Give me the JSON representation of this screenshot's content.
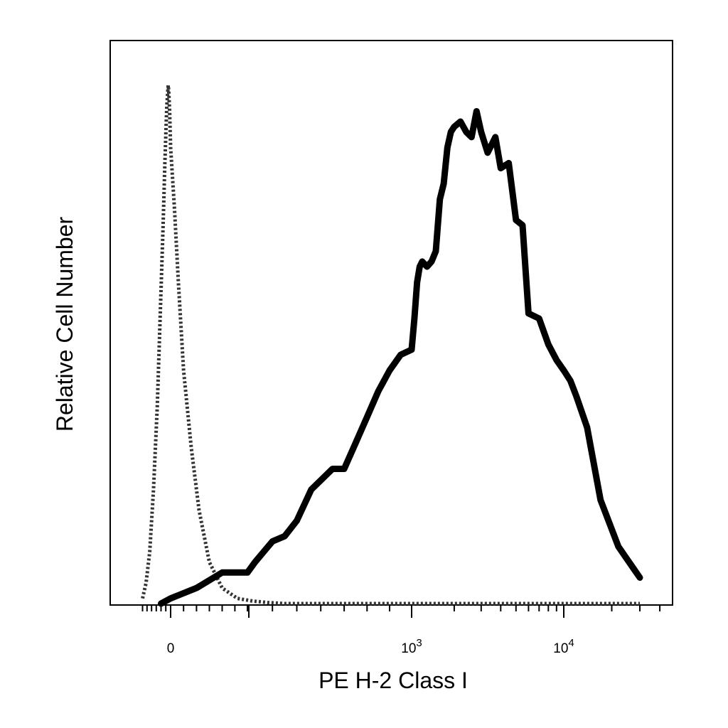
{
  "chart_data": {
    "type": "line",
    "title": "",
    "xlabel": "PE  H-2 Class I",
    "ylabel": "Relative Cell Number",
    "x_scale": "biexponential (linear near 0, log above)",
    "x_ticks": [
      {
        "label": "0",
        "value": 0
      },
      {
        "label": "10",
        "sup": "3",
        "value": 1000
      },
      {
        "label": "10",
        "sup": "4",
        "value": 10000
      }
    ],
    "grid": false,
    "legend": "none",
    "y_range": [
      0,
      100
    ],
    "series": [
      {
        "style": "dotted",
        "color": "#333333",
        "x": [
          -300,
          -260,
          -220,
          -180,
          -140,
          -110,
          -80,
          -60,
          -40,
          -25,
          -20,
          -10,
          0,
          15,
          30,
          50,
          80,
          110,
          150,
          200,
          260,
          320,
          380,
          450,
          550,
          700,
          1000,
          2000,
          5000,
          10000,
          30000
        ],
        "y": [
          1,
          4,
          10,
          22,
          38,
          55,
          72,
          85,
          96,
          100,
          99,
          95,
          88,
          76,
          62,
          45,
          30,
          18,
          8,
          3,
          1,
          0.5,
          0.2,
          0,
          0,
          0,
          0,
          0,
          0,
          0,
          0
        ]
      },
      {
        "style": "solid",
        "color": "#000000",
        "x": [
          -100,
          0,
          100,
          200,
          300,
          330,
          400,
          450,
          500,
          560,
          650,
          700,
          750,
          800,
          850,
          900,
          950,
          1000,
          1050,
          1100,
          1150,
          1200,
          1300,
          1400,
          1500,
          1600,
          1700,
          1800,
          1900,
          2000,
          2200,
          2400,
          2600,
          2800,
          3000,
          3300,
          3700,
          4000,
          4500,
          5000,
          5500,
          6000,
          7000,
          8000,
          9000,
          10000,
          11000,
          12000,
          14000,
          17000,
          22000,
          30000
        ],
        "y": [
          0,
          1,
          3,
          6,
          6,
          8,
          12,
          13,
          16,
          22,
          26,
          26,
          31,
          36,
          41,
          45,
          48,
          49,
          55,
          62,
          65,
          66,
          65,
          66,
          68,
          78,
          81,
          88,
          91,
          92,
          93,
          91,
          90,
          95,
          91,
          87,
          90,
          84,
          85,
          74,
          73,
          56,
          55,
          50,
          47,
          45,
          43,
          40,
          34,
          20,
          11,
          5
        ]
      }
    ]
  }
}
